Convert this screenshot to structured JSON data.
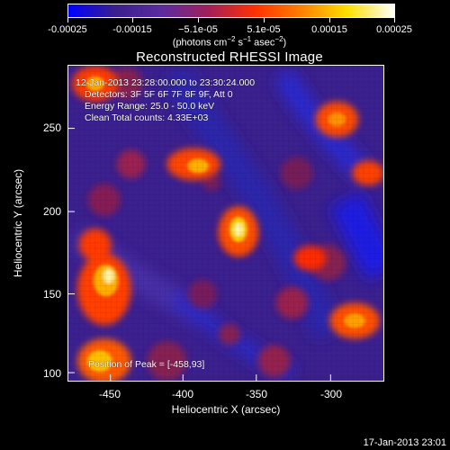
{
  "colorbar": {
    "tick_labels": [
      "-0.00025",
      "-0.00015",
      "−5.1e-05",
      "5.1e-05",
      "0.00015",
      "0.00025"
    ],
    "units_main": "(photons cm",
    "units_exp1": "−2",
    "units_mid1": " s",
    "units_exp2": "−1",
    "units_mid2": " asec",
    "units_exp3": "−2",
    "units_end": ")",
    "colors": [
      "#0000ff",
      "#3a1f8f",
      "#5a2ca0",
      "#a0205a",
      "#ff3000",
      "#ff8000",
      "#ffe000",
      "#ffffff"
    ]
  },
  "plot": {
    "title": "Reconstructed RHESSI Image",
    "annotations": {
      "time_range": "12-Jan-2013 23:28:00.000 to 23:30:24.000",
      "detectors": "Detectors: 3F 5F 6F 7F 8F 9F, Att 0",
      "energy_range": "Energy Range: 25.0 - 50.0 keV",
      "clean": "Clean     Total counts: 4.33E+03",
      "peak": "Position of Peak = [-458,93]"
    },
    "x_axis": {
      "title": "Heliocentric X (arcsec)",
      "tick_labels": [
        "-450",
        "-400",
        "-350",
        "-300"
      ],
      "range": [
        -467,
        -277
      ]
    },
    "y_axis": {
      "title": "Heliocentric Y (arcsec)",
      "tick_labels": [
        "100",
        "150",
        "200",
        "250"
      ],
      "range": [
        95,
        285
      ]
    }
  },
  "footer": {
    "timestamp": "17-Jan-2013 23:01"
  }
}
